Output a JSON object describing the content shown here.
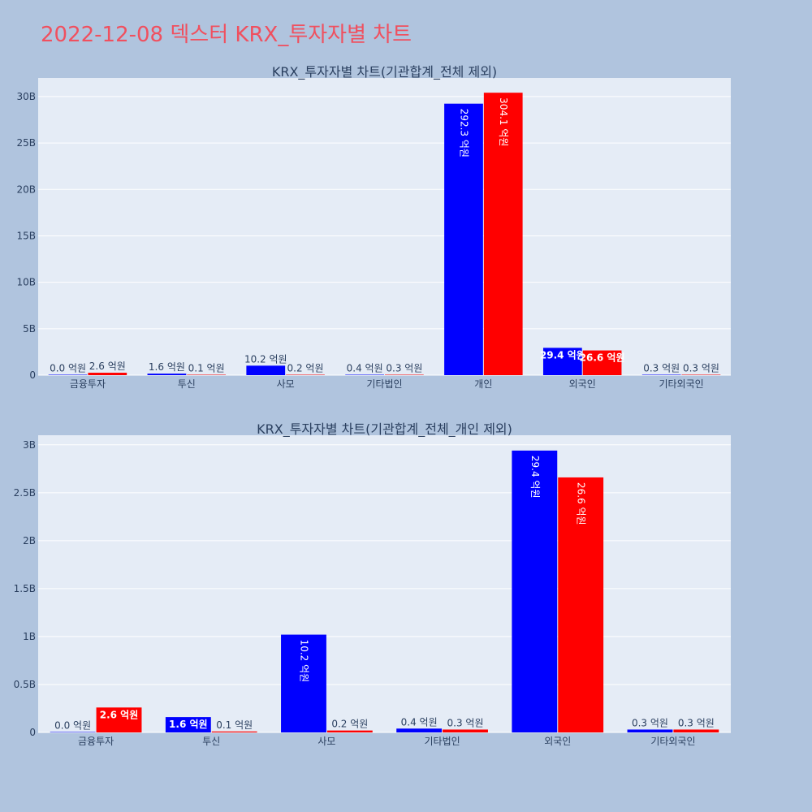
{
  "title": "2022-12-08 덱스터 KRX_투자자별 차트",
  "colors": {
    "page_bg": "#b0c4de",
    "plot_bg": "#e5ecf6",
    "grid": "#ffffff",
    "series_a": "#0000ff",
    "series_b": "#ff0000",
    "title": "#f0505f",
    "text": "#2a3f5f"
  },
  "chart_data": [
    {
      "type": "bar",
      "title": "KRX_투자자별 차트(기관합계_전체 제외)",
      "categories": [
        "금융투자",
        "투신",
        "사모",
        "기타법인",
        "개인",
        "외국인",
        "기타외국인"
      ],
      "series": [
        {
          "values": [
            0.0,
            160000000,
            1020000000,
            40000000,
            29230000000,
            2940000000,
            30000000
          ],
          "labels": [
            "0.0 억원",
            "1.6 억원",
            "10.2 억원",
            "0.4 억원",
            "292.3 억원",
            "29.4 억원",
            "0.3 억원"
          ]
        },
        {
          "values": [
            260000000,
            10000000,
            20000000,
            30000000,
            30410000000,
            2660000000,
            30000000
          ],
          "labels": [
            "2.6 억원",
            "0.1 억원",
            "0.2 억원",
            "0.3 억원",
            "304.1 억원",
            "26.6 억원",
            "0.3 억원"
          ]
        }
      ],
      "yticks": [
        0,
        5000000000,
        10000000000,
        15000000000,
        20000000000,
        25000000000,
        30000000000
      ],
      "ytick_labels": [
        "0",
        "5B",
        "10B",
        "15B",
        "20B",
        "25B",
        "30B"
      ],
      "ylim": [
        0,
        32000000000
      ],
      "grid": true
    },
    {
      "type": "bar",
      "title": "KRX_투자자별 차트(기관합계_전체_개인 제외)",
      "categories": [
        "금융투자",
        "투신",
        "사모",
        "기타법인",
        "외국인",
        "기타외국인"
      ],
      "series": [
        {
          "values": [
            0.0,
            160000000,
            1020000000,
            40000000,
            2940000000,
            30000000
          ],
          "labels": [
            "0.0 억원",
            "1.6 억원",
            "10.2 억원",
            "0.4 억원",
            "29.4 억원",
            "0.3 억원"
          ]
        },
        {
          "values": [
            260000000,
            10000000,
            20000000,
            30000000,
            2660000000,
            30000000
          ],
          "labels": [
            "2.6 억원",
            "0.1 억원",
            "0.2 억원",
            "0.3 억원",
            "26.6 억원",
            "0.3 억원"
          ]
        }
      ],
      "yticks": [
        0,
        500000000,
        1000000000,
        1500000000,
        2000000000,
        2500000000,
        3000000000
      ],
      "ytick_labels": [
        "0",
        "0.5B",
        "1B",
        "1.5B",
        "2B",
        "2.5B",
        "3B"
      ],
      "ylim": [
        0,
        3100000000
      ],
      "grid": true
    }
  ]
}
